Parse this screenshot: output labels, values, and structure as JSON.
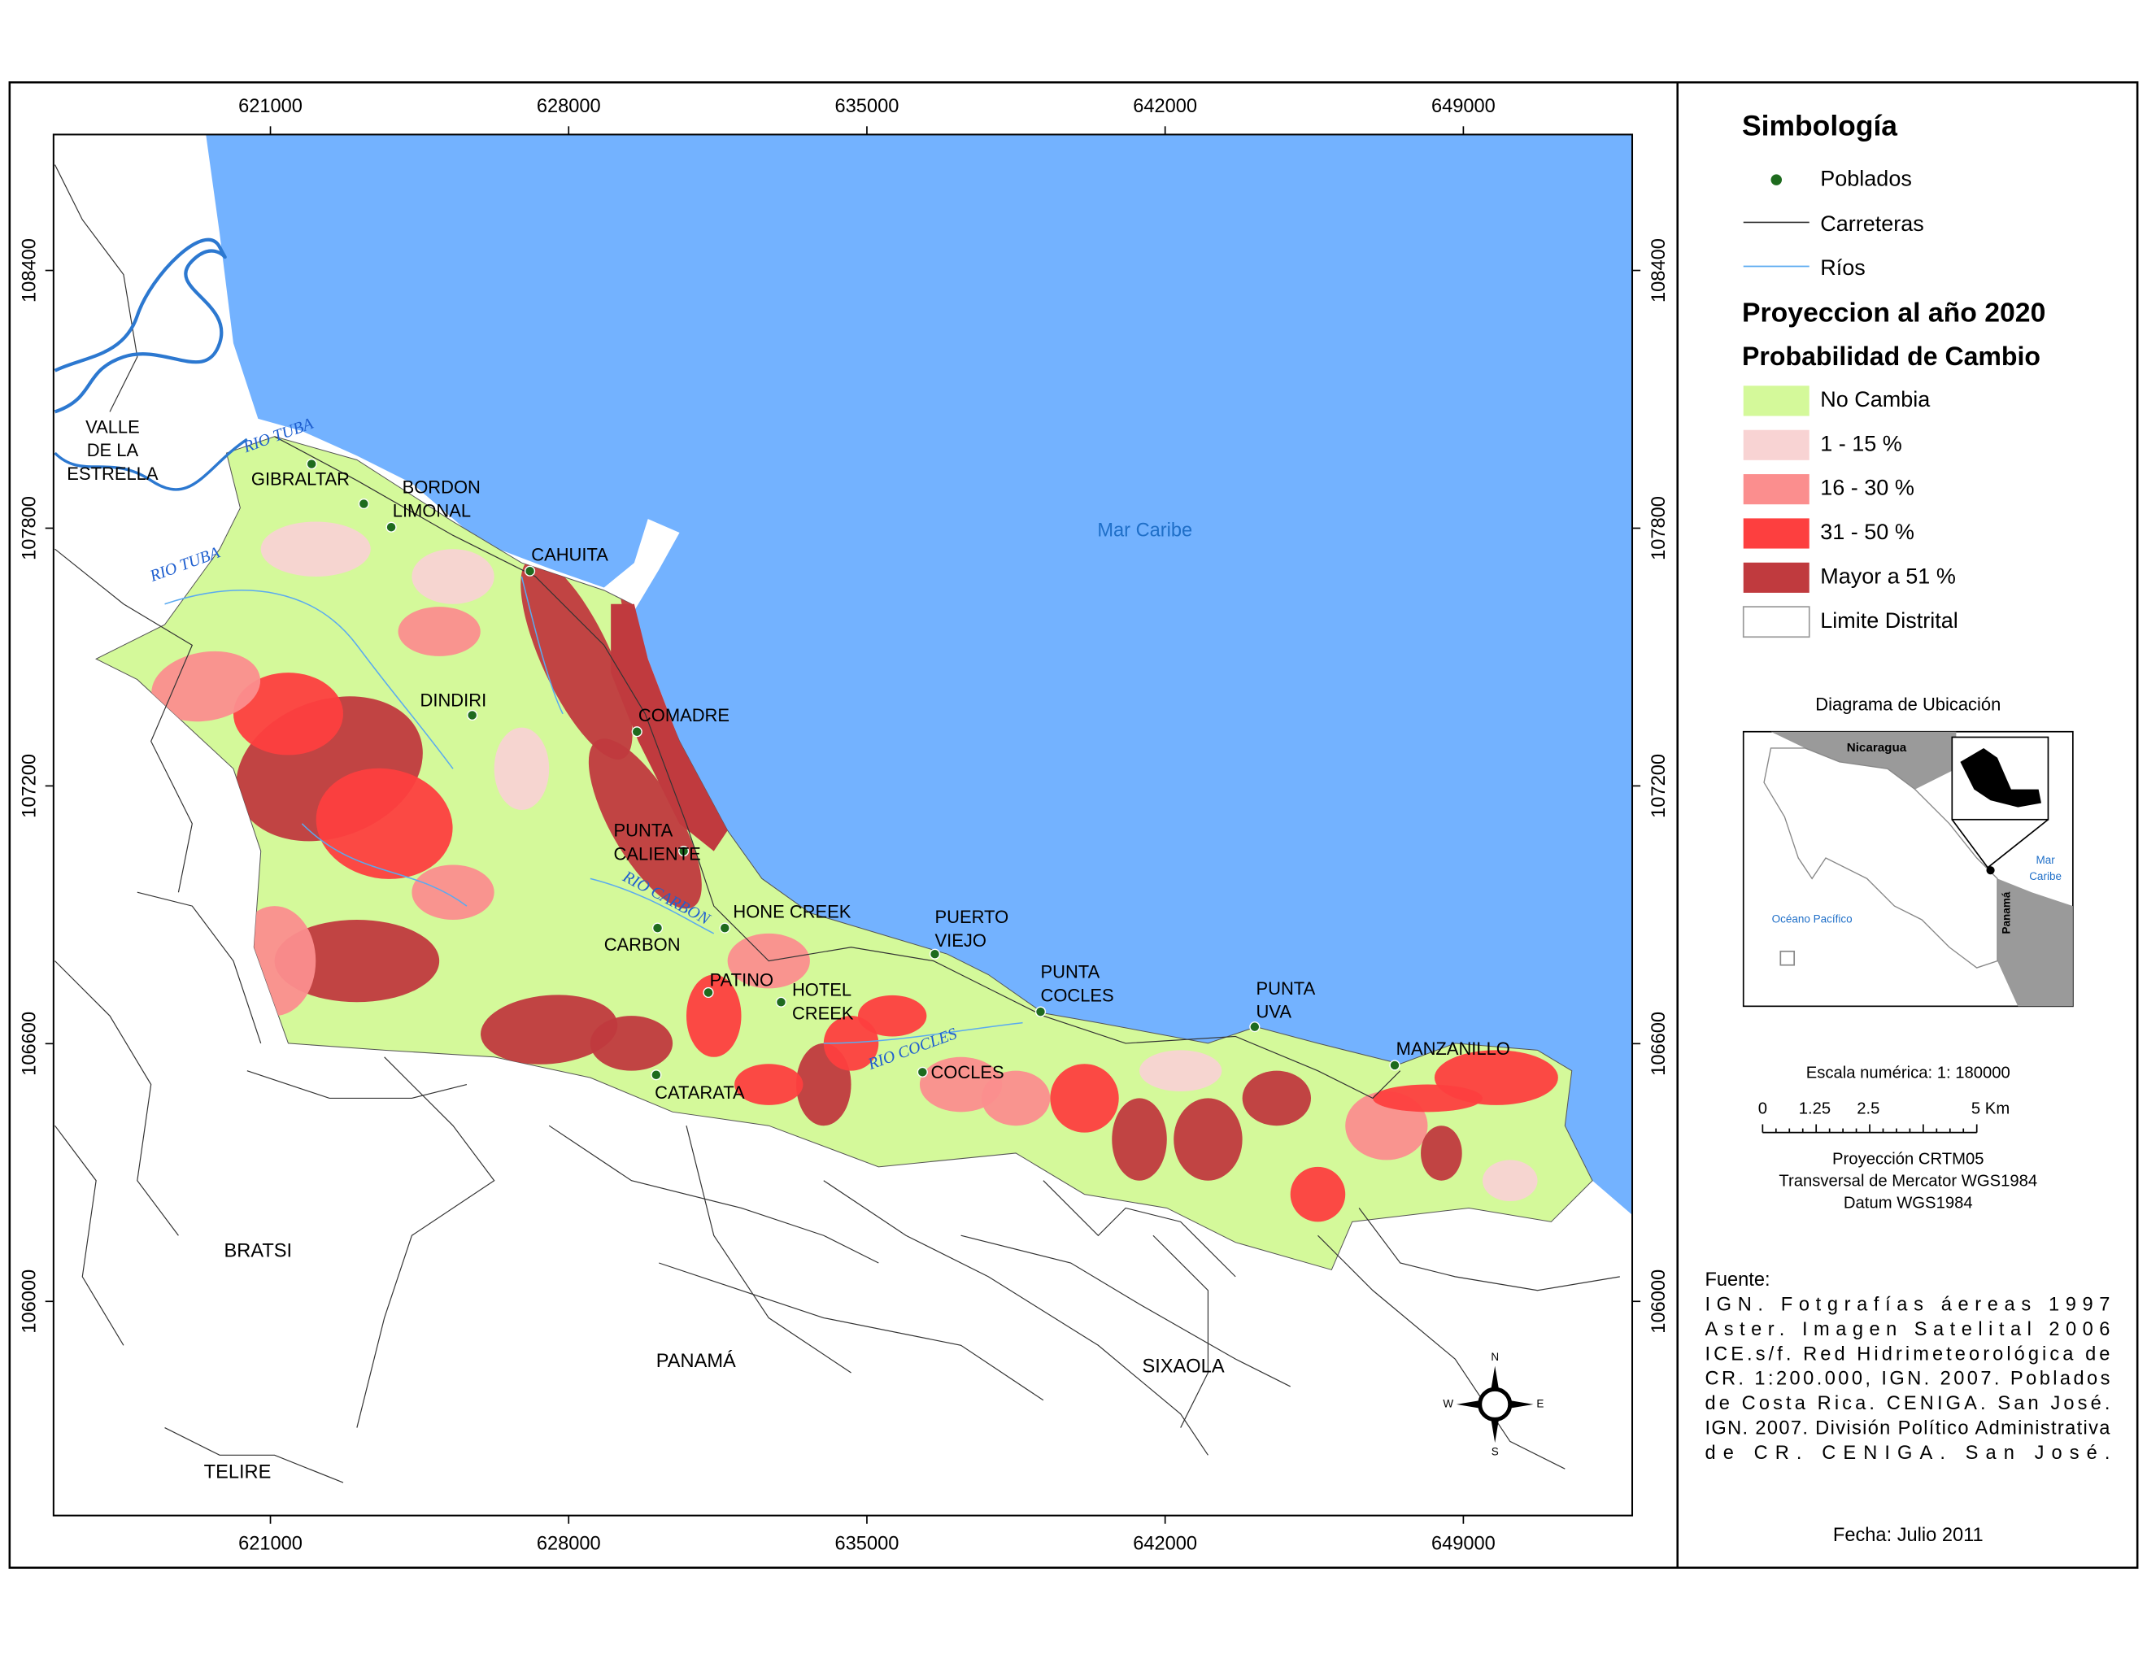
{
  "map": {
    "x_ticks": [
      621000,
      628000,
      635000,
      642000,
      649000
    ],
    "y_ticks": [
      108400,
      107800,
      107200,
      106600,
      106000
    ],
    "sea_label": "Mar Caribe",
    "region_labels": [
      "BRATSI",
      "PANAMÁ",
      "SIXAOLA",
      "TELIRE"
    ],
    "towns": [
      [
        "VALLE",
        "DE LA",
        "ESTRELLA"
      ],
      [
        "GIBRALTAR"
      ],
      [
        "BORDON"
      ],
      [
        "LIMONAL"
      ],
      [
        "CAHUITA"
      ],
      [
        "DINDIRI"
      ],
      [
        "COMADRE"
      ],
      [
        "PUNTA",
        "CALIENTE"
      ],
      [
        "HONE CREEK"
      ],
      [
        "CARBON"
      ],
      [
        "PATINO"
      ],
      [
        "HOTEL",
        "CREEK"
      ],
      [
        "PUERTO",
        "VIEJO"
      ],
      [
        "PUNTA",
        "COCLES"
      ],
      [
        "COCLES"
      ],
      [
        "PUNTA",
        "UVA"
      ],
      [
        "MANZANILLO"
      ],
      [
        "CATARATA"
      ]
    ],
    "rivers": [
      "RIO TUBA",
      "RIO TUBA",
      "RIO CARBON",
      "RIO COCLES"
    ],
    "compass": [
      "N",
      "S",
      "E",
      "W"
    ]
  },
  "legend": {
    "title": "Simbología",
    "symbols": [
      {
        "label": "Poblados",
        "color": "#1e6b1e"
      },
      {
        "label": "Carreteras",
        "color": "#333333"
      },
      {
        "label": "Ríos",
        "color": "#5aaaf0"
      }
    ],
    "heading": "Proyeccion al año 2020",
    "subheading": "Probabilidad de Cambio",
    "classes": [
      {
        "label": "No Cambia",
        "color": "#d4f99a"
      },
      {
        "label": "1 - 15 %",
        "color": "#f8d3d3"
      },
      {
        "label": "16 - 30 %",
        "color": "#fb8e8e"
      },
      {
        "label": "31 - 50 %",
        "color": "#fd3f3f"
      },
      {
        "label": "Mayor a 51 %",
        "color": "#c03a3e"
      },
      {
        "label": "Limite Distrital",
        "color": "#ffffff"
      }
    ]
  },
  "location": {
    "title": "Diagrama de Ubicación",
    "nicaragua": "Nicaragua",
    "caribbean": [
      "Mar",
      "Caribe"
    ],
    "pacific": "Océano Pacífico",
    "panama": "Panamá"
  },
  "scale": {
    "text": "Escala numérica: 1: 180000",
    "ticks": [
      "0",
      "1.25",
      "2.5",
      "5 Km"
    ]
  },
  "projection": [
    "Proyección CRTM05",
    "Transversal de Mercator WGS1984",
    "Datum WGS1984"
  ],
  "source": [
    "Fuente:",
    "IGN. Fotgrafías áereas 1997",
    "Aster. Imagen Satelital 2006",
    "ICE.s/f. Red Hidrimeteorológica de",
    "CR. 1:200.000, IGN. 2007. Poblados",
    "de Costa Rica. CENIGA. San José.",
    "IGN. 2007. División Político Administrativa",
    "de CR. CENIGA. San José."
  ],
  "date": "Fecha: Julio 2011"
}
